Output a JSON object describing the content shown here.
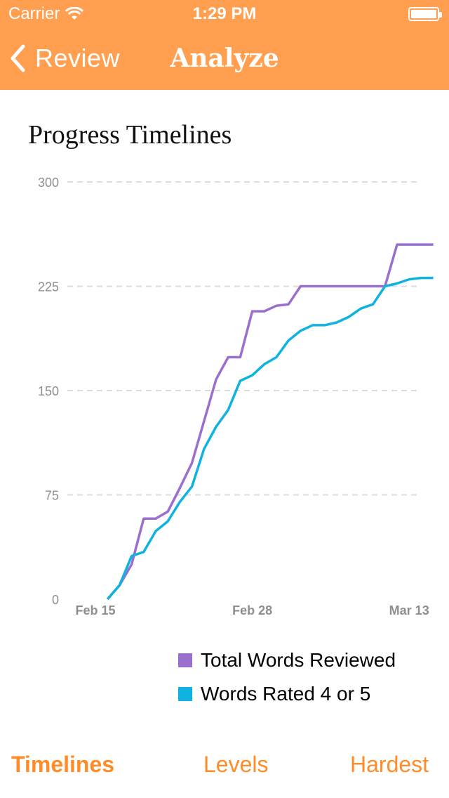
{
  "status_bar": {
    "carrier": "Carrier",
    "time": "1:29 PM"
  },
  "nav": {
    "back_label": "Review",
    "title": "Analyze"
  },
  "card": {
    "title": "Progress Timelines"
  },
  "colors": {
    "header": "#ff9f4f",
    "accent": "#ff8c28",
    "series_total": "#9b6fce",
    "series_rated": "#10b3e0"
  },
  "chart_data": {
    "type": "line",
    "title": "Progress Timelines",
    "xlabel": "",
    "ylabel": "",
    "ylim": [
      0,
      300
    ],
    "y_ticks": [
      "0",
      "75",
      "150",
      "225",
      "300"
    ],
    "x_tick_labels": [
      {
        "label": "Feb 15",
        "date": "Feb 15"
      },
      {
        "label": "Feb 28",
        "date": "Feb 28"
      },
      {
        "label": "Mar 13",
        "date": "Mar 13"
      }
    ],
    "grid": true,
    "legend_position": "bottom-right",
    "x": [
      "Feb 16",
      "Feb 17",
      "Feb 18",
      "Feb 19",
      "Feb 20",
      "Feb 21",
      "Feb 22",
      "Feb 23",
      "Feb 24",
      "Feb 25",
      "Feb 26",
      "Feb 27",
      "Feb 28",
      "Mar 1",
      "Mar 2",
      "Mar 3",
      "Mar 4",
      "Mar 5",
      "Mar 6",
      "Mar 7",
      "Mar 8",
      "Mar 9",
      "Mar 10",
      "Mar 11",
      "Mar 12",
      "Mar 13",
      "Mar 14",
      "Mar 15"
    ],
    "series": [
      {
        "name": "Total Words Reviewed",
        "color": "#9b6fce",
        "values": [
          0,
          10,
          25,
          58,
          58,
          63,
          80,
          98,
          128,
          158,
          174,
          174,
          207,
          207,
          211,
          212,
          225,
          225,
          225,
          225,
          225,
          225,
          225,
          225,
          255,
          255,
          255,
          255
        ]
      },
      {
        "name": "Words Rated 4 or 5",
        "color": "#10b3e0",
        "values": [
          0,
          10,
          31,
          34,
          49,
          56,
          70,
          81,
          108,
          124,
          136,
          157,
          161,
          169,
          174,
          186,
          193,
          197,
          197,
          199,
          203,
          209,
          212,
          225,
          227,
          230,
          231,
          231
        ]
      }
    ]
  },
  "legend": {
    "items": [
      "Total Words Reviewed",
      "Words Rated 4 or 5"
    ]
  },
  "tabs": [
    {
      "label": "Timelines",
      "active": true
    },
    {
      "label": "Levels",
      "active": false
    },
    {
      "label": "Hardest",
      "active": false
    }
  ]
}
